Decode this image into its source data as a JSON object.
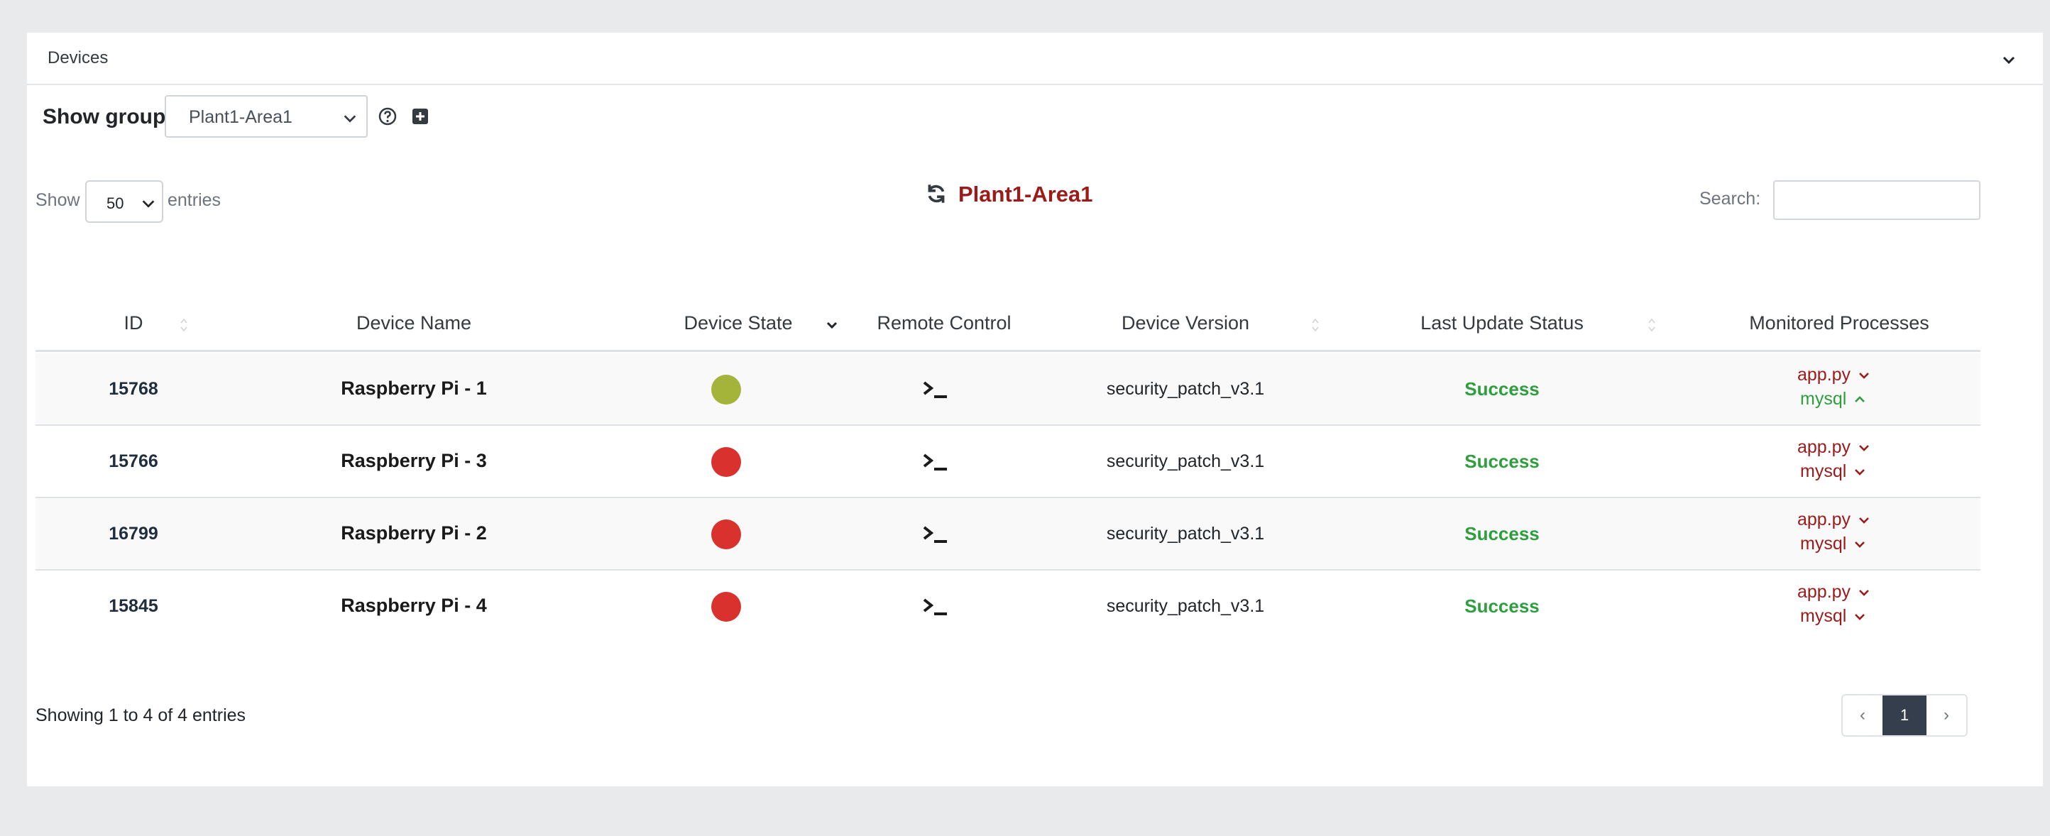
{
  "card": {
    "title": "Devices"
  },
  "group": {
    "label": "Show group:",
    "selected": "Plant1-Area1"
  },
  "length": {
    "show_label": "Show",
    "selected": "50",
    "entries_label": "entries"
  },
  "table_title": "Plant1-Area1",
  "search": {
    "label": "Search:",
    "value": ""
  },
  "columns": [
    "ID",
    "Device Name",
    "Device State",
    "Remote Control",
    "Device Version",
    "Last Update Status",
    "Monitored Processes"
  ],
  "rows": [
    {
      "id": "15768",
      "name": "Raspberry Pi - 1",
      "state_color": "#a4b43a",
      "version": "security_patch_v3.1",
      "status": "Success",
      "processes": [
        {
          "name": "app.py",
          "state": "down"
        },
        {
          "name": "mysql",
          "state": "up"
        }
      ]
    },
    {
      "id": "15766",
      "name": "Raspberry Pi - 3",
      "state_color": "#d9322e",
      "version": "security_patch_v3.1",
      "status": "Success",
      "processes": [
        {
          "name": "app.py",
          "state": "down"
        },
        {
          "name": "mysql",
          "state": "down"
        }
      ]
    },
    {
      "id": "16799",
      "name": "Raspberry Pi - 2",
      "state_color": "#d9322e",
      "version": "security_patch_v3.1",
      "status": "Success",
      "processes": [
        {
          "name": "app.py",
          "state": "down"
        },
        {
          "name": "mysql",
          "state": "down"
        }
      ]
    },
    {
      "id": "15845",
      "name": "Raspberry Pi - 4",
      "state_color": "#d9322e",
      "version": "security_patch_v3.1",
      "status": "Success",
      "processes": [
        {
          "name": "app.py",
          "state": "down"
        },
        {
          "name": "mysql",
          "state": "down"
        }
      ]
    }
  ],
  "footer": {
    "info": "Showing 1 to 4 of 4 entries"
  },
  "pagination": {
    "prev": "‹",
    "current": "1",
    "next": "›"
  },
  "colors": {
    "down": "#9b1b1b",
    "up": "#2e9e3e",
    "status_success": "#2e9e3e",
    "title": "#9b1b1b",
    "pager_active": "#343e4c"
  }
}
